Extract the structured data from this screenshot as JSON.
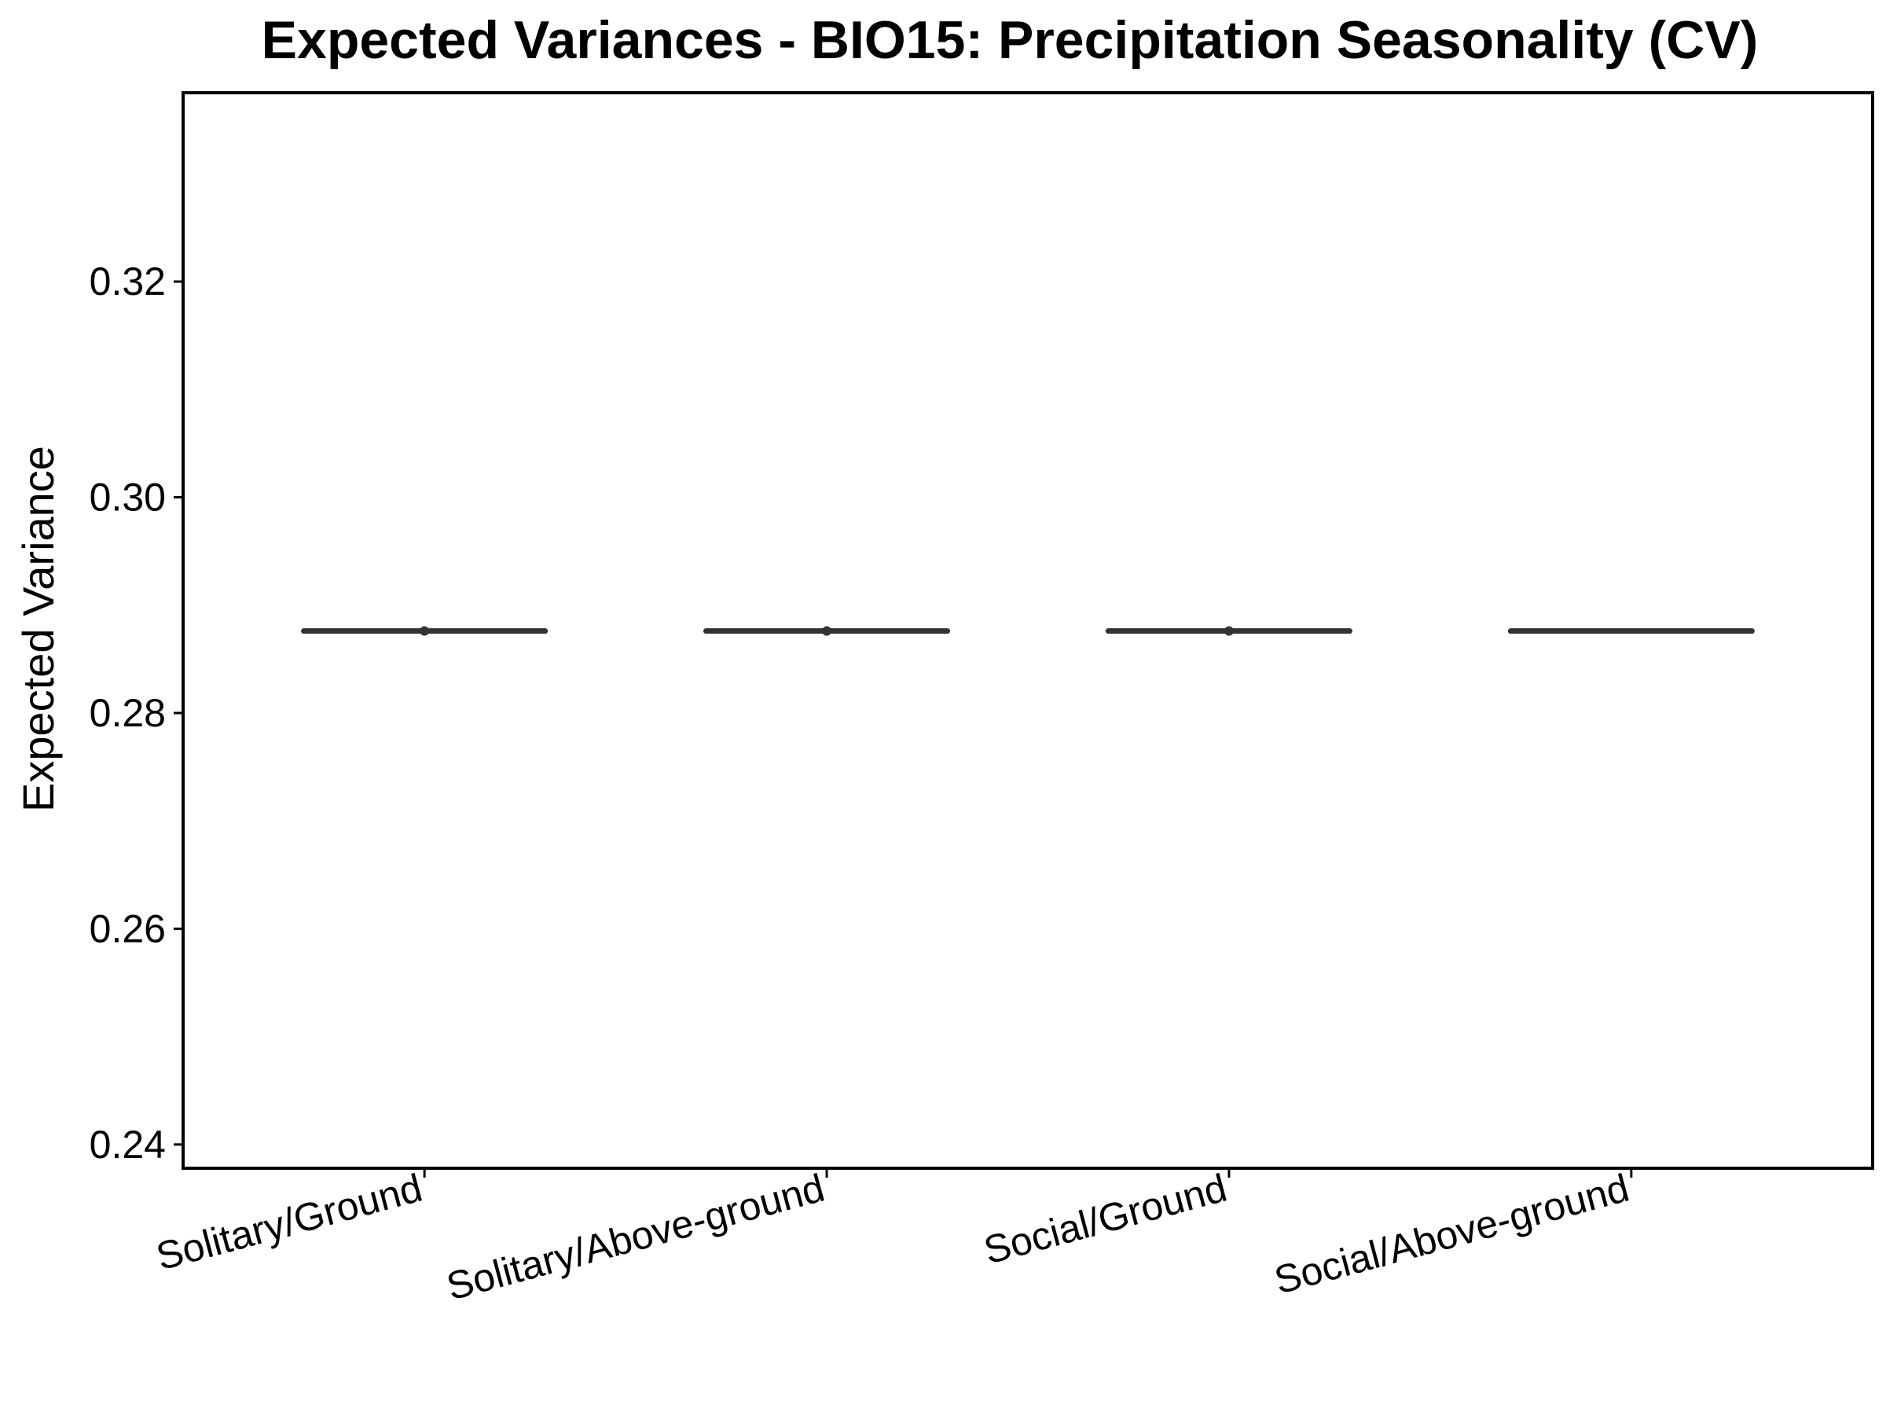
{
  "chart_data": {
    "type": "boxplot",
    "title": "Expected Variances - BIO15: Precipitation Seasonality (CV)",
    "xlabel": "",
    "ylabel": "Expected Variance",
    "categories": [
      "Solitary/Ground",
      "Solitary/Above-ground",
      "Social/Ground",
      "Social/Above-ground"
    ],
    "values": [
      0.2876,
      0.2876,
      0.2876,
      0.2876
    ],
    "outlier_points": [
      true,
      true,
      true,
      false
    ],
    "ylim": [
      0.2378,
      0.3375
    ],
    "yticks": [
      0.24,
      0.26,
      0.28,
      0.3,
      0.32
    ],
    "ytick_labels": [
      "0.24",
      "0.26",
      "0.28",
      "0.30",
      "0.32"
    ],
    "grid": false,
    "legend": "none",
    "colors": {
      "box_line": "#333333",
      "axis": "#000000",
      "background": "#ffffff"
    }
  }
}
